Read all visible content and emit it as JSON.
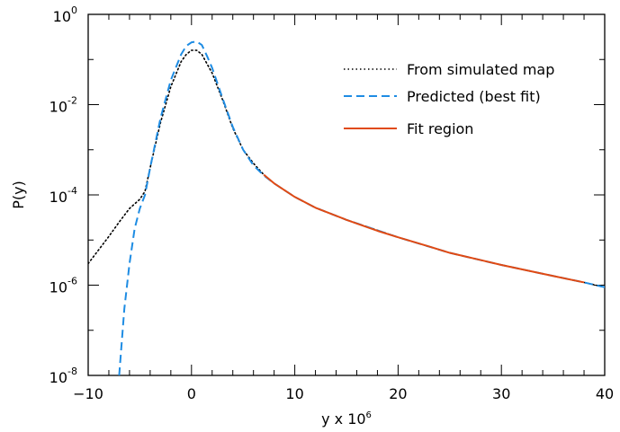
{
  "chart_data": {
    "type": "line",
    "xlabel": "y x 10",
    "xlabel_sup": "6",
    "ylabel": "P(y)",
    "xlim": [
      -10,
      40
    ],
    "ylim": [
      1e-08,
      1
    ],
    "yscale": "log",
    "xticks": [
      -10,
      0,
      10,
      20,
      30,
      40
    ],
    "xtick_labels": [
      "−10",
      "0",
      "10",
      "20",
      "30",
      "40"
    ],
    "yticks": [
      {
        "value": 1,
        "base": "10",
        "exp": "0"
      },
      {
        "value": 0.01,
        "base": "10",
        "exp": "-2"
      },
      {
        "value": 0.0001,
        "base": "10",
        "exp": "-4"
      },
      {
        "value": 1e-06,
        "base": "10",
        "exp": "-6"
      },
      {
        "value": 1e-08,
        "base": "10",
        "exp": "-8"
      }
    ],
    "grid": false,
    "legend_position": "top-right",
    "series": [
      {
        "name": "From simulated map",
        "style": "dotted",
        "color": "#000000",
        "x": [
          -10,
          -9,
          -8,
          -7,
          -6,
          -5,
          -4.5,
          -4,
          -3,
          -2,
          -1,
          -0.5,
          0,
          0.5,
          1,
          2,
          3,
          4,
          5,
          6,
          7,
          8,
          10,
          12,
          15,
          20,
          25,
          30,
          35,
          38,
          40
        ],
        "y": [
          3e-06,
          6e-06,
          1.2e-05,
          2.5e-05,
          5e-05,
          8e-05,
          0.00012,
          0.0004,
          0.004,
          0.025,
          0.09,
          0.13,
          0.16,
          0.16,
          0.13,
          0.05,
          0.013,
          0.003,
          0.001,
          0.0005,
          0.00028,
          0.00018,
          9e-05,
          5.2e-05,
          2.8e-05,
          1.15e-05,
          5.2e-06,
          2.8e-06,
          1.6e-06,
          1.15e-06,
          9e-07
        ]
      },
      {
        "name": "Predicted (best fit)",
        "style": "dashed",
        "color": "#1e8ce3",
        "x": [
          -7,
          -6.5,
          -6,
          -5.5,
          -5,
          -4.5,
          -4,
          -3,
          -2,
          -1,
          -0.5,
          0,
          0.5,
          1,
          1.5,
          2,
          3,
          4,
          5,
          6,
          7,
          8,
          10,
          12,
          15,
          20,
          25,
          30,
          35,
          38,
          40
        ],
        "y": [
          1e-08,
          3e-07,
          3e-06,
          1.8e-05,
          5e-05,
          0.0001,
          0.0004,
          0.005,
          0.035,
          0.13,
          0.2,
          0.24,
          0.25,
          0.21,
          0.12,
          0.065,
          0.014,
          0.0032,
          0.001,
          0.00045,
          0.00027,
          0.00018,
          9e-05,
          5.2e-05,
          2.8e-05,
          1.15e-05,
          5.2e-06,
          2.8e-06,
          1.6e-06,
          1.15e-06,
          9e-07
        ]
      },
      {
        "name": "Fit region",
        "style": "solid",
        "color": "#e04a14",
        "x": [
          7,
          8,
          10,
          12,
          15,
          18,
          20,
          23,
          25,
          28,
          30,
          33,
          35,
          38
        ],
        "y": [
          0.00028,
          0.00018,
          9e-05,
          5.2e-05,
          2.8e-05,
          1.6e-05,
          1.15e-05,
          7.2e-06,
          5.2e-06,
          3.6e-06,
          2.8e-06,
          2e-06,
          1.6e-06,
          1.15e-06
        ]
      }
    ]
  }
}
